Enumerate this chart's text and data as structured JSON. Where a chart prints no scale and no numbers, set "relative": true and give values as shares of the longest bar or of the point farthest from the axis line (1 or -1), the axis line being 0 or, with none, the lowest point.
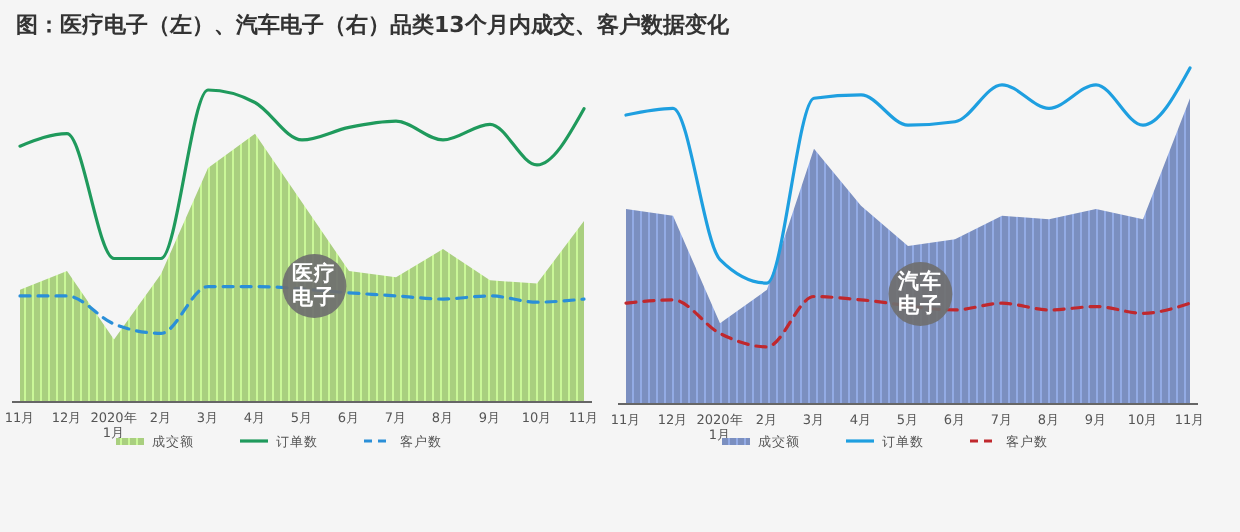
{
  "chart_data": [
    {
      "type": "area",
      "title": "图：医疗电子（左）、汽车电子（右）品类13个月内成交、客户数据变化",
      "relative": true,
      "tick_labels": "x",
      "legend": "bottom",
      "annotations": [
        "医疗电子"
      ],
      "categories": [
        "11月",
        "12月",
        "2020年\n1月",
        "2月",
        "3月",
        "4月",
        "5月",
        "6月",
        "7月",
        "8月",
        "9月",
        "10月",
        "11月"
      ],
      "series": [
        {
          "name": "成交额",
          "color": "#a9cf7f",
          "values": [
            0.36,
            0.42,
            0.2,
            0.41,
            0.75,
            0.86,
            null,
            0.42,
            0.4,
            0.49,
            0.39,
            0.38,
            0.58
          ]
        },
        {
          "name": "订单数",
          "type": "line",
          "color": "#1f9a5c",
          "line_style": "solid",
          "values": [
            0.82,
            0.86,
            0.46,
            0.46,
            1.0,
            0.96,
            0.84,
            0.88,
            0.9,
            0.84,
            0.89,
            0.76,
            0.94
          ]
        },
        {
          "name": "客户数",
          "type": "line",
          "color": "#2a8fd8",
          "line_style": "dashed",
          "values": [
            0.34,
            0.34,
            0.25,
            0.22,
            0.37,
            0.37,
            null,
            0.35,
            0.34,
            0.33,
            0.34,
            0.32,
            0.33
          ]
        }
      ]
    },
    {
      "type": "area",
      "relative": true,
      "tick_labels": "x",
      "legend": "bottom",
      "annotations": [
        "汽车电子"
      ],
      "categories": [
        "11月",
        "12月",
        "2020年\n1月",
        "2月",
        "3月",
        "4月",
        "5月",
        "6月",
        "7月",
        "8月",
        "9月",
        "10月",
        "11月"
      ],
      "series": [
        {
          "name": "成交额",
          "color": "#7b8fc0",
          "values": [
            0.58,
            0.56,
            0.24,
            0.34,
            0.76,
            0.59,
            0.47,
            0.49,
            0.56,
            0.55,
            0.58,
            0.55,
            0.91
          ]
        },
        {
          "name": "订单数",
          "type": "line",
          "color": "#1e9fe0",
          "line_style": "solid",
          "values": [
            0.86,
            0.88,
            0.43,
            0.36,
            0.91,
            0.92,
            0.83,
            0.84,
            0.95,
            0.88,
            0.95,
            0.83,
            1.0
          ]
        },
        {
          "name": "客户数",
          "type": "line",
          "color": "#c0282d",
          "line_style": "dashed",
          "values": [
            0.3,
            0.31,
            0.21,
            0.17,
            0.32,
            0.31,
            null,
            0.28,
            0.3,
            0.28,
            0.29,
            0.27,
            0.3
          ]
        }
      ]
    }
  ]
}
